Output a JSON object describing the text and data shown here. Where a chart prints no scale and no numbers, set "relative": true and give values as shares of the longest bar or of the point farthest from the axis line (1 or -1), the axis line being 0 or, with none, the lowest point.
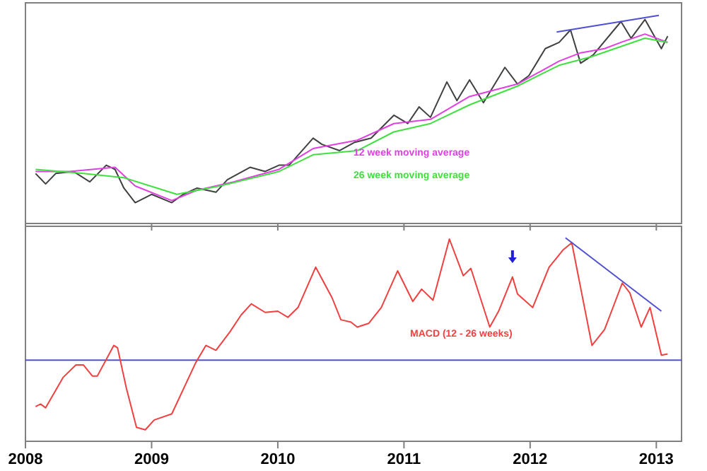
{
  "chart_data": [
    {
      "type": "line",
      "relative": true,
      "xlim": [
        2008,
        2013.2
      ],
      "xticks": [
        2008,
        2009,
        2010,
        2011,
        2012,
        2013
      ],
      "tick_labels": false,
      "legend": "bottom",
      "series": [
        {
          "color": "#404040",
          "x": [
            2008.08,
            2008.16,
            2008.24,
            2008.38,
            2008.51,
            2008.64,
            2008.71,
            2008.78,
            2008.87,
            2009.0,
            2009.16,
            2009.25,
            2009.36,
            2009.51,
            2009.6,
            2009.78,
            2009.9,
            2010.01,
            2010.09,
            2010.28,
            2010.35,
            2010.49,
            2010.61,
            2010.74,
            2010.92,
            2011.03,
            2011.12,
            2011.21,
            2011.34,
            2011.42,
            2011.52,
            2011.63,
            2011.8,
            2011.9,
            2011.99,
            2012.12,
            2012.23,
            2012.32,
            2012.4,
            2012.5,
            2012.72,
            2012.8,
            2012.91,
            2013.04,
            2013.09
          ],
          "values": [
            0.24,
            0.19,
            0.24,
            0.25,
            0.2,
            0.28,
            0.26,
            0.17,
            0.1,
            0.14,
            0.1,
            0.14,
            0.17,
            0.15,
            0.21,
            0.27,
            0.25,
            0.28,
            0.28,
            0.41,
            0.38,
            0.35,
            0.39,
            0.41,
            0.52,
            0.48,
            0.56,
            0.51,
            0.68,
            0.59,
            0.69,
            0.58,
            0.75,
            0.67,
            0.71,
            0.84,
            0.87,
            0.93,
            0.77,
            0.81,
            0.97,
            0.89,
            0.98,
            0.84,
            0.9
          ]
        },
        {
          "name": "12 week moving average",
          "color": "#e040e0",
          "x": [
            2008.08,
            2008.35,
            2008.71,
            2008.87,
            2009.16,
            2009.36,
            2009.65,
            2010.01,
            2010.28,
            2010.63,
            2010.92,
            2011.21,
            2011.52,
            2011.9,
            2012.23,
            2012.4,
            2012.59,
            2012.72,
            2012.91,
            2013.09
          ],
          "values": [
            0.25,
            0.25,
            0.27,
            0.18,
            0.11,
            0.16,
            0.2,
            0.26,
            0.36,
            0.4,
            0.48,
            0.5,
            0.61,
            0.67,
            0.78,
            0.82,
            0.84,
            0.87,
            0.91,
            0.87
          ]
        },
        {
          "name": "26 week moving average",
          "color": "#40e040",
          "x": [
            2008.08,
            2008.46,
            2008.78,
            2009.2,
            2009.54,
            2010.01,
            2010.28,
            2010.63,
            2010.92,
            2011.21,
            2011.52,
            2011.9,
            2012.23,
            2012.48,
            2012.72,
            2012.91,
            2013.09
          ],
          "values": [
            0.26,
            0.24,
            0.22,
            0.14,
            0.18,
            0.25,
            0.33,
            0.35,
            0.44,
            0.48,
            0.57,
            0.66,
            0.76,
            0.8,
            0.85,
            0.89,
            0.87
          ]
        },
        {
          "color": "#5050d0",
          "x": [
            2012.21,
            2013.02
          ],
          "values": [
            0.92,
            1
          ]
        }
      ]
    },
    {
      "type": "line",
      "relative": true,
      "xlim": [
        2008,
        2013.2
      ],
      "xticks": [
        2008,
        2009,
        2010,
        2011,
        2012,
        2013
      ],
      "tick_labels": "x",
      "legend": "center",
      "ref_lines": [
        {
          "axis": "y",
          "value": 0,
          "color": "#5050d0"
        }
      ],
      "series": [
        {
          "name": "MACD (12 - 26 weeks)",
          "color": "#f04040",
          "x": [
            2008.08,
            2008.12,
            2008.16,
            2008.3,
            2008.4,
            2008.46,
            2008.53,
            2008.57,
            2008.7,
            2008.73,
            2008.8,
            2008.88,
            2008.95,
            2009.02,
            2009.16,
            2009.35,
            2009.43,
            2009.51,
            2009.62,
            2009.71,
            2009.79,
            2009.9,
            2010.0,
            2010.08,
            2010.16,
            2010.3,
            2010.43,
            2010.5,
            2010.58,
            2010.63,
            2010.72,
            2010.82,
            2010.95,
            2011.07,
            2011.14,
            2011.23,
            2011.36,
            2011.47,
            2011.53,
            2011.68,
            2011.75,
            2011.86,
            2011.9,
            2012.02,
            2012.15,
            2012.26,
            2012.33,
            2012.49,
            2012.59,
            2012.73,
            2012.79,
            2012.88,
            2012.95,
            2013.04,
            2013.09
          ],
          "values": [
            -0.38,
            -0.36,
            -0.39,
            -0.14,
            -0.04,
            -0.04,
            -0.13,
            -0.13,
            0.12,
            0.1,
            -0.23,
            -0.55,
            -0.57,
            -0.49,
            -0.44,
            -0.02,
            0.12,
            0.08,
            0.23,
            0.37,
            0.46,
            0.39,
            0.4,
            0.35,
            0.43,
            0.76,
            0.51,
            0.33,
            0.31,
            0.27,
            0.3,
            0.43,
            0.73,
            0.48,
            0.58,
            0.49,
            0.99,
            0.69,
            0.75,
            0.27,
            0.4,
            0.68,
            0.54,
            0.43,
            0.76,
            0.9,
            0.96,
            0.12,
            0.25,
            0.63,
            0.55,
            0.27,
            0.43,
            0.04,
            0.05
          ]
        },
        {
          "color": "#5050d0",
          "x": [
            2012.28,
            2013.04
          ],
          "values": [
            1,
            0.4
          ]
        }
      ]
    }
  ]
}
